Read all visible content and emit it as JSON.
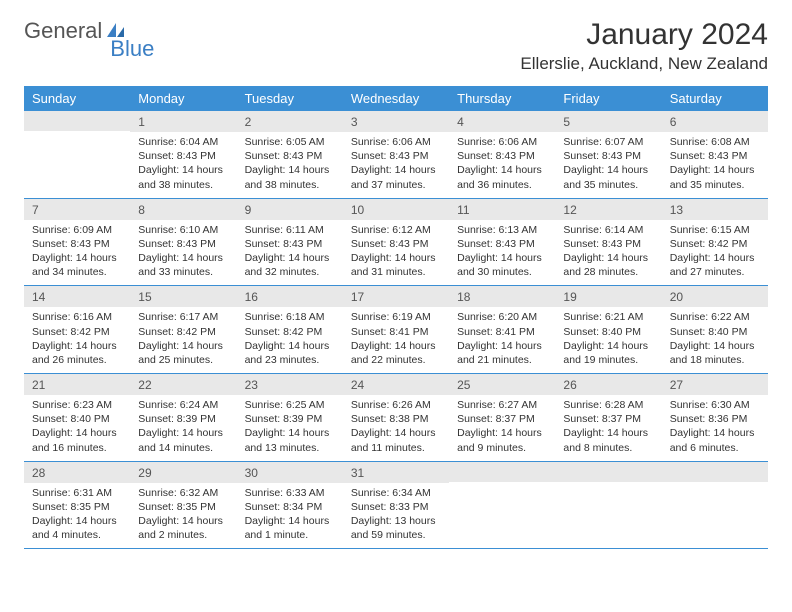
{
  "logo": {
    "text1": "General",
    "text2": "Blue"
  },
  "title": "January 2024",
  "location": "Ellerslie, Auckland, New Zealand",
  "weekdays": [
    "Sunday",
    "Monday",
    "Tuesday",
    "Wednesday",
    "Thursday",
    "Friday",
    "Saturday"
  ],
  "colors": {
    "header_bg": "#3b8fd4",
    "header_text": "#ffffff",
    "daynum_bg": "#e8e8e8",
    "border": "#3b8fd4",
    "logo_blue": "#3b7fc4"
  },
  "weeks": [
    [
      {
        "n": "",
        "sunrise": "",
        "sunset": "",
        "daylight": ""
      },
      {
        "n": "1",
        "sunrise": "Sunrise: 6:04 AM",
        "sunset": "Sunset: 8:43 PM",
        "daylight": "Daylight: 14 hours and 38 minutes."
      },
      {
        "n": "2",
        "sunrise": "Sunrise: 6:05 AM",
        "sunset": "Sunset: 8:43 PM",
        "daylight": "Daylight: 14 hours and 38 minutes."
      },
      {
        "n": "3",
        "sunrise": "Sunrise: 6:06 AM",
        "sunset": "Sunset: 8:43 PM",
        "daylight": "Daylight: 14 hours and 37 minutes."
      },
      {
        "n": "4",
        "sunrise": "Sunrise: 6:06 AM",
        "sunset": "Sunset: 8:43 PM",
        "daylight": "Daylight: 14 hours and 36 minutes."
      },
      {
        "n": "5",
        "sunrise": "Sunrise: 6:07 AM",
        "sunset": "Sunset: 8:43 PM",
        "daylight": "Daylight: 14 hours and 35 minutes."
      },
      {
        "n": "6",
        "sunrise": "Sunrise: 6:08 AM",
        "sunset": "Sunset: 8:43 PM",
        "daylight": "Daylight: 14 hours and 35 minutes."
      }
    ],
    [
      {
        "n": "7",
        "sunrise": "Sunrise: 6:09 AM",
        "sunset": "Sunset: 8:43 PM",
        "daylight": "Daylight: 14 hours and 34 minutes."
      },
      {
        "n": "8",
        "sunrise": "Sunrise: 6:10 AM",
        "sunset": "Sunset: 8:43 PM",
        "daylight": "Daylight: 14 hours and 33 minutes."
      },
      {
        "n": "9",
        "sunrise": "Sunrise: 6:11 AM",
        "sunset": "Sunset: 8:43 PM",
        "daylight": "Daylight: 14 hours and 32 minutes."
      },
      {
        "n": "10",
        "sunrise": "Sunrise: 6:12 AM",
        "sunset": "Sunset: 8:43 PM",
        "daylight": "Daylight: 14 hours and 31 minutes."
      },
      {
        "n": "11",
        "sunrise": "Sunrise: 6:13 AM",
        "sunset": "Sunset: 8:43 PM",
        "daylight": "Daylight: 14 hours and 30 minutes."
      },
      {
        "n": "12",
        "sunrise": "Sunrise: 6:14 AM",
        "sunset": "Sunset: 8:43 PM",
        "daylight": "Daylight: 14 hours and 28 minutes."
      },
      {
        "n": "13",
        "sunrise": "Sunrise: 6:15 AM",
        "sunset": "Sunset: 8:42 PM",
        "daylight": "Daylight: 14 hours and 27 minutes."
      }
    ],
    [
      {
        "n": "14",
        "sunrise": "Sunrise: 6:16 AM",
        "sunset": "Sunset: 8:42 PM",
        "daylight": "Daylight: 14 hours and 26 minutes."
      },
      {
        "n": "15",
        "sunrise": "Sunrise: 6:17 AM",
        "sunset": "Sunset: 8:42 PM",
        "daylight": "Daylight: 14 hours and 25 minutes."
      },
      {
        "n": "16",
        "sunrise": "Sunrise: 6:18 AM",
        "sunset": "Sunset: 8:42 PM",
        "daylight": "Daylight: 14 hours and 23 minutes."
      },
      {
        "n": "17",
        "sunrise": "Sunrise: 6:19 AM",
        "sunset": "Sunset: 8:41 PM",
        "daylight": "Daylight: 14 hours and 22 minutes."
      },
      {
        "n": "18",
        "sunrise": "Sunrise: 6:20 AM",
        "sunset": "Sunset: 8:41 PM",
        "daylight": "Daylight: 14 hours and 21 minutes."
      },
      {
        "n": "19",
        "sunrise": "Sunrise: 6:21 AM",
        "sunset": "Sunset: 8:40 PM",
        "daylight": "Daylight: 14 hours and 19 minutes."
      },
      {
        "n": "20",
        "sunrise": "Sunrise: 6:22 AM",
        "sunset": "Sunset: 8:40 PM",
        "daylight": "Daylight: 14 hours and 18 minutes."
      }
    ],
    [
      {
        "n": "21",
        "sunrise": "Sunrise: 6:23 AM",
        "sunset": "Sunset: 8:40 PM",
        "daylight": "Daylight: 14 hours and 16 minutes."
      },
      {
        "n": "22",
        "sunrise": "Sunrise: 6:24 AM",
        "sunset": "Sunset: 8:39 PM",
        "daylight": "Daylight: 14 hours and 14 minutes."
      },
      {
        "n": "23",
        "sunrise": "Sunrise: 6:25 AM",
        "sunset": "Sunset: 8:39 PM",
        "daylight": "Daylight: 14 hours and 13 minutes."
      },
      {
        "n": "24",
        "sunrise": "Sunrise: 6:26 AM",
        "sunset": "Sunset: 8:38 PM",
        "daylight": "Daylight: 14 hours and 11 minutes."
      },
      {
        "n": "25",
        "sunrise": "Sunrise: 6:27 AM",
        "sunset": "Sunset: 8:37 PM",
        "daylight": "Daylight: 14 hours and 9 minutes."
      },
      {
        "n": "26",
        "sunrise": "Sunrise: 6:28 AM",
        "sunset": "Sunset: 8:37 PM",
        "daylight": "Daylight: 14 hours and 8 minutes."
      },
      {
        "n": "27",
        "sunrise": "Sunrise: 6:30 AM",
        "sunset": "Sunset: 8:36 PM",
        "daylight": "Daylight: 14 hours and 6 minutes."
      }
    ],
    [
      {
        "n": "28",
        "sunrise": "Sunrise: 6:31 AM",
        "sunset": "Sunset: 8:35 PM",
        "daylight": "Daylight: 14 hours and 4 minutes."
      },
      {
        "n": "29",
        "sunrise": "Sunrise: 6:32 AM",
        "sunset": "Sunset: 8:35 PM",
        "daylight": "Daylight: 14 hours and 2 minutes."
      },
      {
        "n": "30",
        "sunrise": "Sunrise: 6:33 AM",
        "sunset": "Sunset: 8:34 PM",
        "daylight": "Daylight: 14 hours and 1 minute."
      },
      {
        "n": "31",
        "sunrise": "Sunrise: 6:34 AM",
        "sunset": "Sunset: 8:33 PM",
        "daylight": "Daylight: 13 hours and 59 minutes."
      },
      {
        "n": "",
        "sunrise": "",
        "sunset": "",
        "daylight": ""
      },
      {
        "n": "",
        "sunrise": "",
        "sunset": "",
        "daylight": ""
      },
      {
        "n": "",
        "sunrise": "",
        "sunset": "",
        "daylight": ""
      }
    ]
  ]
}
